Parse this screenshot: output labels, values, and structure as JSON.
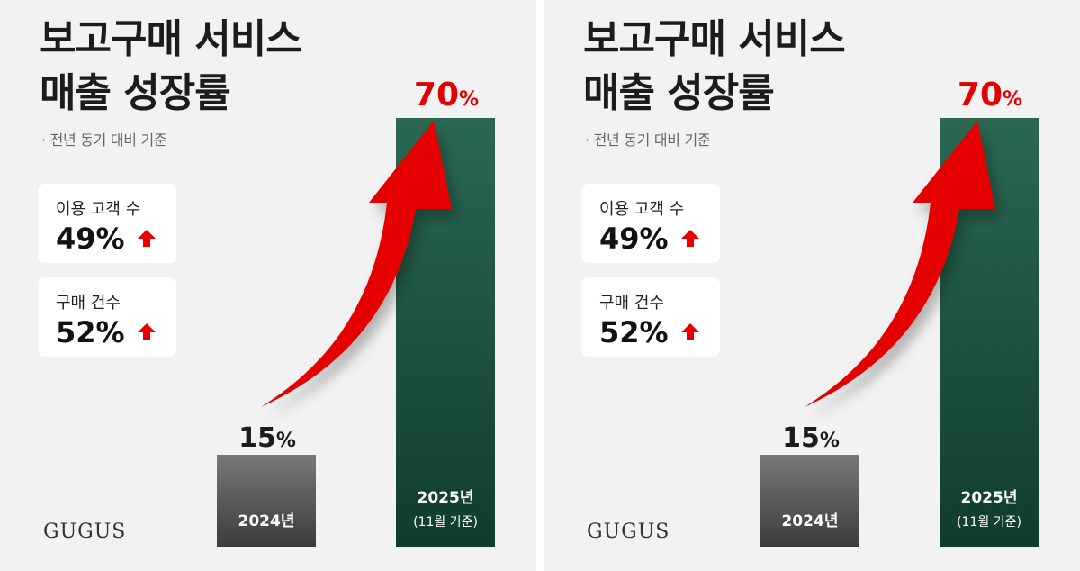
{
  "panels": [
    {
      "title_line1": "보고구매 서비스",
      "title_line2": "매출 성장률",
      "subtitle": "· 전년 동기 대비 기준",
      "stats": [
        {
          "label": "이용 고객 수",
          "value": "49%"
        },
        {
          "label": "구매 건수",
          "value": "52%"
        }
      ],
      "brand": "GUGUS"
    },
    {
      "title_line1": "보고구매 서비스",
      "title_line2": "매출 성장률",
      "subtitle": "· 전년 동기 대비 기준",
      "stats": [
        {
          "label": "이용 고객 수",
          "value": "49%"
        },
        {
          "label": "구매 건수",
          "value": "52%"
        }
      ],
      "brand": "GUGUS"
    }
  ],
  "colors": {
    "arrow": "#e50000",
    "bar_2024": "#5a5a5a",
    "bar_2025": "#1f5a45",
    "highlight_text": "#e50000"
  },
  "chart_data": {
    "type": "bar",
    "categories": [
      "2024년",
      "2025년"
    ],
    "category_notes": [
      "",
      "(11월 기준)"
    ],
    "values": [
      15,
      70
    ],
    "data_labels": [
      {
        "number": "15",
        "unit": "%"
      },
      {
        "number": "70",
        "unit": "%"
      }
    ],
    "ylim": [
      0,
      70
    ]
  }
}
